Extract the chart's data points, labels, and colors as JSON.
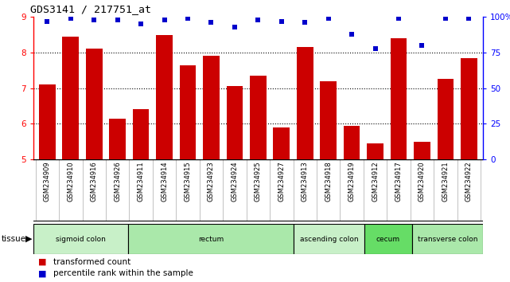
{
  "title": "GDS3141 / 217751_at",
  "samples": [
    "GSM234909",
    "GSM234910",
    "GSM234916",
    "GSM234926",
    "GSM234911",
    "GSM234914",
    "GSM234915",
    "GSM234923",
    "GSM234924",
    "GSM234925",
    "GSM234927",
    "GSM234913",
    "GSM234918",
    "GSM234919",
    "GSM234912",
    "GSM234917",
    "GSM234920",
    "GSM234921",
    "GSM234922"
  ],
  "bar_values": [
    7.1,
    8.45,
    8.1,
    6.15,
    6.4,
    8.5,
    7.65,
    7.9,
    7.05,
    7.35,
    5.9,
    8.15,
    7.2,
    5.95,
    5.45,
    8.4,
    5.5,
    7.25,
    7.85
  ],
  "percentile_values": [
    97,
    99,
    98,
    98,
    95,
    98,
    99,
    96,
    93,
    98,
    97,
    96,
    99,
    88,
    78,
    99,
    80,
    99,
    99
  ],
  "ylim_left": [
    5,
    9
  ],
  "ylim_right": [
    0,
    100
  ],
  "yticks_left": [
    5,
    6,
    7,
    8,
    9
  ],
  "yticks_right": [
    0,
    25,
    50,
    75,
    100
  ],
  "bar_color": "#cc0000",
  "dot_color": "#0000cc",
  "tissue_groups": [
    {
      "label": "sigmoid colon",
      "start": 0,
      "end": 3,
      "color": "#c8f0c8"
    },
    {
      "label": "rectum",
      "start": 4,
      "end": 10,
      "color": "#aae8aa"
    },
    {
      "label": "ascending colon",
      "start": 11,
      "end": 13,
      "color": "#c8f0c8"
    },
    {
      "label": "cecum",
      "start": 14,
      "end": 15,
      "color": "#66dd66"
    },
    {
      "label": "transverse colon",
      "start": 16,
      "end": 18,
      "color": "#aae8aa"
    }
  ],
  "legend_items": [
    {
      "color": "#cc0000",
      "label": "transformed count"
    },
    {
      "color": "#0000cc",
      "label": "percentile rank within the sample"
    }
  ],
  "grid_yticks": [
    6,
    7,
    8
  ],
  "sample_bg_color": "#cccccc",
  "plot_bg_color": "#ffffff",
  "fig_bg_color": "#ffffff"
}
